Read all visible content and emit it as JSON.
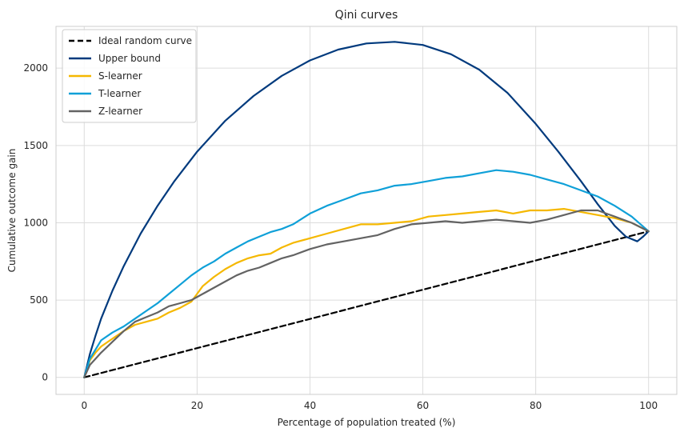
{
  "chart_data": {
    "type": "line",
    "title": "Qini curves",
    "xlabel": "Percentage of population treated (%)",
    "ylabel": "Cumulative outcome gain",
    "xlim": [
      -5,
      105
    ],
    "ylim": [
      -110,
      2270
    ],
    "xticks": [
      0,
      20,
      40,
      60,
      80,
      100
    ],
    "yticks": [
      0,
      500,
      1000,
      1500,
      2000
    ],
    "grid": true,
    "legend_position": "top-left",
    "series": [
      {
        "name": "Ideal random curve",
        "color": "#000000",
        "style": "dashed",
        "x": [
          0,
          100
        ],
        "y": [
          0,
          945
        ]
      },
      {
        "name": "Upper bound",
        "color": "#003a7d",
        "style": "solid",
        "x": [
          0,
          1,
          2,
          3,
          5,
          7,
          10,
          13,
          16,
          20,
          25,
          30,
          35,
          40,
          45,
          50,
          55,
          60,
          65,
          70,
          75,
          80,
          84,
          88,
          91,
          94,
          96,
          98,
          99,
          100
        ],
        "y": [
          0,
          150,
          270,
          380,
          560,
          720,
          930,
          1110,
          1270,
          1460,
          1660,
          1820,
          1950,
          2050,
          2120,
          2160,
          2170,
          2150,
          2090,
          1990,
          1840,
          1640,
          1460,
          1270,
          1120,
          980,
          910,
          880,
          910,
          945
        ]
      },
      {
        "name": "S-learner",
        "color": "#f5b800",
        "style": "solid",
        "x": [
          0,
          1,
          2,
          3,
          5,
          7,
          9,
          11,
          13,
          15,
          17,
          19,
          21,
          23,
          25,
          27,
          29,
          31,
          33,
          35,
          37,
          40,
          43,
          46,
          49,
          52,
          55,
          58,
          61,
          64,
          67,
          70,
          73,
          76,
          79,
          82,
          85,
          88,
          91,
          94,
          97,
          100
        ],
        "y": [
          0,
          110,
          160,
          200,
          250,
          300,
          340,
          360,
          380,
          420,
          450,
          490,
          590,
          650,
          700,
          740,
          770,
          790,
          800,
          840,
          870,
          900,
          930,
          960,
          990,
          990,
          1000,
          1010,
          1040,
          1050,
          1060,
          1070,
          1080,
          1060,
          1080,
          1080,
          1090,
          1070,
          1050,
          1030,
          1000,
          945
        ]
      },
      {
        "name": "T-learner",
        "color": "#0fa0d8",
        "style": "solid",
        "x": [
          0,
          1,
          2,
          3,
          5,
          7,
          9,
          11,
          13,
          15,
          17,
          19,
          21,
          23,
          25,
          27,
          29,
          31,
          33,
          35,
          37,
          40,
          43,
          46,
          49,
          52,
          55,
          58,
          61,
          64,
          67,
          70,
          73,
          76,
          79,
          82,
          85,
          88,
          91,
          94,
          97,
          100
        ],
        "y": [
          0,
          120,
          180,
          240,
          290,
          330,
          380,
          430,
          480,
          540,
          600,
          660,
          710,
          750,
          800,
          840,
          880,
          910,
          940,
          960,
          990,
          1060,
          1110,
          1150,
          1190,
          1210,
          1240,
          1250,
          1270,
          1290,
          1300,
          1320,
          1340,
          1330,
          1310,
          1280,
          1250,
          1210,
          1170,
          1110,
          1040,
          945
        ]
      },
      {
        "name": "Z-learner",
        "color": "#636363",
        "style": "solid",
        "x": [
          0,
          1,
          2,
          3,
          5,
          7,
          9,
          11,
          13,
          15,
          17,
          19,
          21,
          23,
          25,
          27,
          29,
          31,
          33,
          35,
          37,
          40,
          43,
          46,
          49,
          52,
          55,
          58,
          61,
          64,
          67,
          70,
          73,
          76,
          79,
          82,
          85,
          88,
          91,
          94,
          97,
          100
        ],
        "y": [
          0,
          80,
          120,
          160,
          230,
          300,
          360,
          390,
          420,
          460,
          480,
          500,
          540,
          580,
          620,
          660,
          690,
          710,
          740,
          770,
          790,
          830,
          860,
          880,
          900,
          920,
          960,
          990,
          1000,
          1010,
          1000,
          1010,
          1020,
          1010,
          1000,
          1020,
          1050,
          1080,
          1080,
          1040,
          1000,
          945
        ]
      }
    ]
  }
}
